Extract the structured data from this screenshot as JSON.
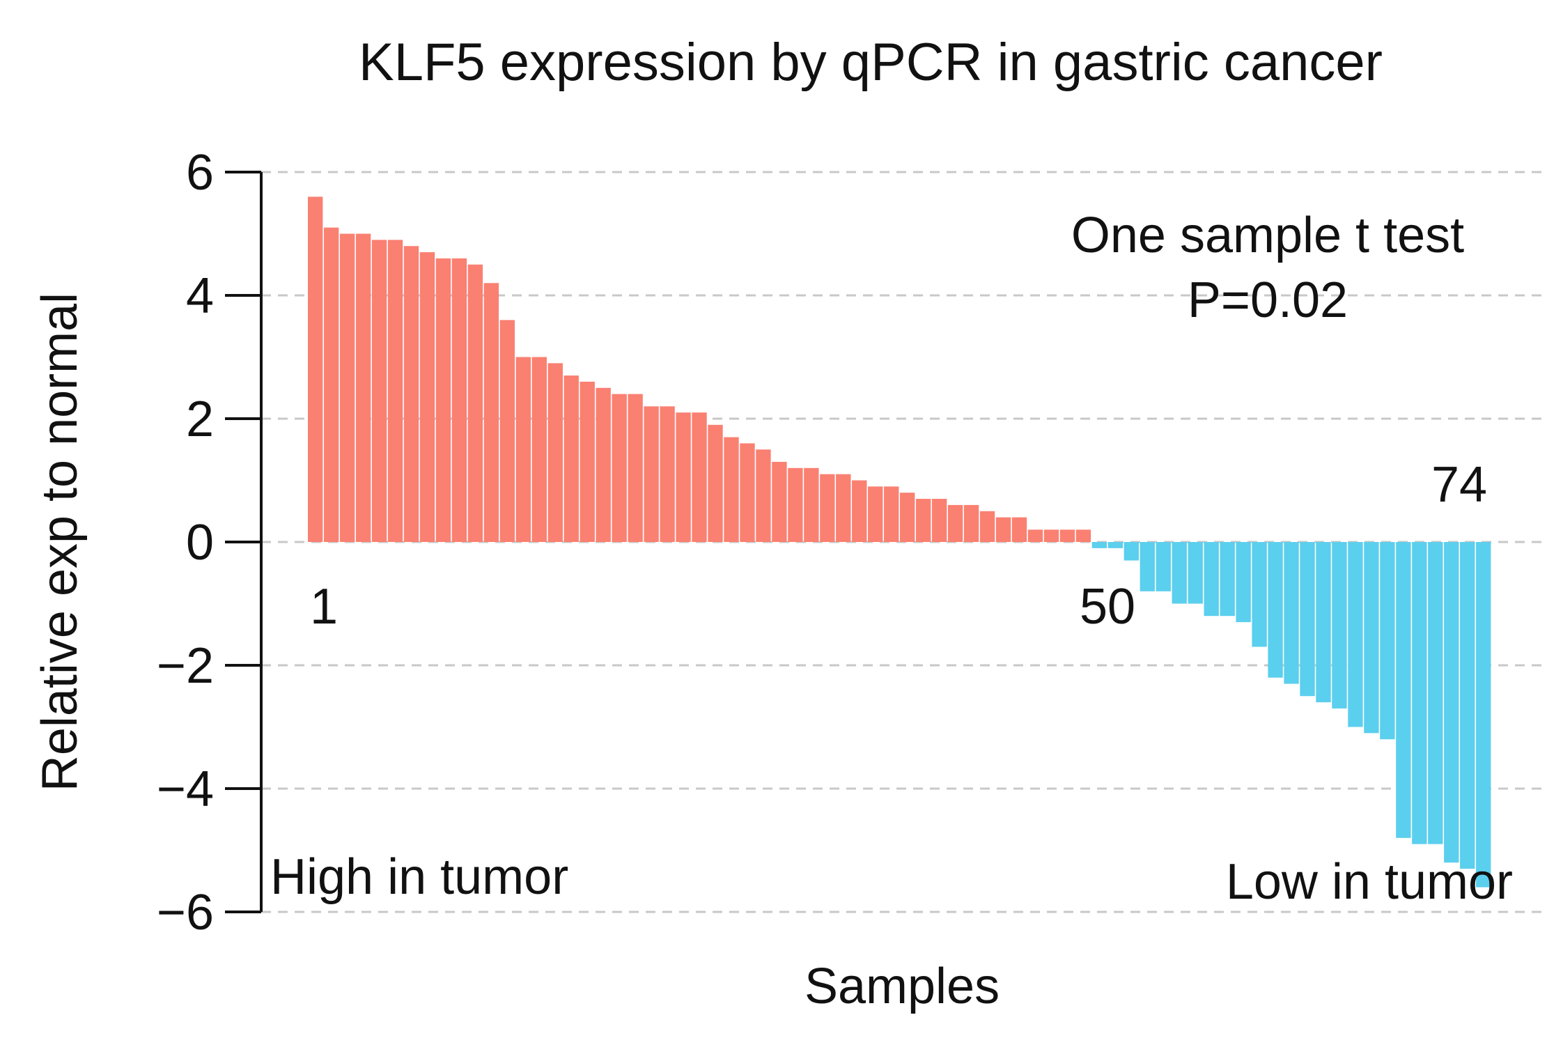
{
  "chart_data": {
    "type": "bar",
    "title": "KLF5 expression by qPCR in gastric cancer",
    "xlabel": "Samples",
    "ylabel": "Relative exp to normal",
    "ylim": [
      -6,
      6
    ],
    "yticks": [
      6,
      4,
      2,
      0,
      -2,
      -4,
      -6
    ],
    "ytick_labels": [
      "6",
      "4",
      "2",
      "0",
      "−2",
      "−4",
      "−6"
    ],
    "grid": "horizontal dashed",
    "colors": {
      "positive": "#fa8072",
      "negative": "#5bcfee"
    },
    "series": [
      {
        "name": "Relative expression",
        "values": [
          5.6,
          5.1,
          5.0,
          5.0,
          4.9,
          4.9,
          4.8,
          4.7,
          4.6,
          4.6,
          4.5,
          4.2,
          3.6,
          3.0,
          3.0,
          2.9,
          2.7,
          2.6,
          2.5,
          2.4,
          2.4,
          2.2,
          2.2,
          2.1,
          2.1,
          1.9,
          1.7,
          1.6,
          1.5,
          1.3,
          1.2,
          1.2,
          1.1,
          1.1,
          1.0,
          0.9,
          0.9,
          0.8,
          0.7,
          0.7,
          0.6,
          0.6,
          0.5,
          0.4,
          0.4,
          0.2,
          0.2,
          0.2,
          0.2,
          -0.1,
          -0.1,
          -0.3,
          -0.8,
          -0.8,
          -1.0,
          -1.0,
          -1.2,
          -1.2,
          -1.3,
          -1.7,
          -2.2,
          -2.3,
          -2.5,
          -2.6,
          -2.7,
          -3.0,
          -3.1,
          -3.2,
          -4.8,
          -4.9,
          -4.9,
          -5.2,
          -5.3,
          -5.6
        ]
      }
    ],
    "annotations": {
      "test_name": "One sample t test",
      "p_value": "P=0.02",
      "first_index": "1",
      "mid_index": "50",
      "last_index": "74",
      "high_label": "High in tumor",
      "low_label": "Low in tumor"
    }
  }
}
